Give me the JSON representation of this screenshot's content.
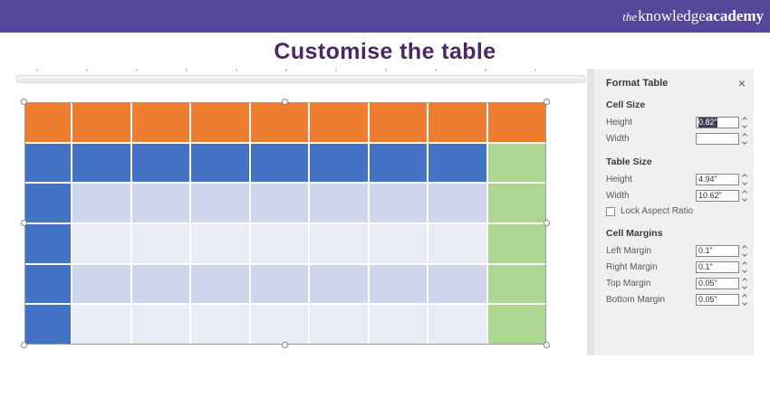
{
  "header": {
    "logo": {
      "the": "the",
      "knowledge": "knowledge",
      "academy": "academy"
    }
  },
  "title": "Customise the table",
  "panel": {
    "title": "Format Table",
    "close": "×",
    "sections": [
      {
        "heading": "Cell Size",
        "fields": [
          {
            "label": "Height",
            "value": "0.82\"",
            "selected": true
          },
          {
            "label": "Width",
            "value": "",
            "selected": false
          }
        ]
      },
      {
        "heading": "Table Size",
        "fields": [
          {
            "label": "Height",
            "value": "4.94\"",
            "selected": false
          },
          {
            "label": "Width",
            "value": "10.62\"",
            "selected": false
          }
        ],
        "checkbox": {
          "label": "Lock Aspect Ratio",
          "checked": false
        }
      },
      {
        "heading": "Cell Margins",
        "fields": [
          {
            "label": "Left Margin",
            "value": "0.1\"",
            "selected": false
          },
          {
            "label": "Right Margin",
            "value": "0.1\"",
            "selected": false
          },
          {
            "label": "Top Margin",
            "value": "0.05\"",
            "selected": false
          },
          {
            "label": "Bottom Margin",
            "value": "0.05\"",
            "selected": false
          }
        ]
      }
    ]
  },
  "slide_table": {
    "palette": {
      "O": "#ED7D31",
      "B": "#4472C4",
      "D": "#CFD5EA",
      "L": "#E9EBF5",
      "G": "#ADD693"
    },
    "cells": [
      [
        "O",
        "O",
        "O",
        "O",
        "O",
        "O",
        "O",
        "O",
        "O"
      ],
      [
        "B",
        "B",
        "B",
        "B",
        "B",
        "B",
        "B",
        "B",
        "G"
      ],
      [
        "B",
        "D",
        "D",
        "D",
        "D",
        "D",
        "D",
        "D",
        "G"
      ],
      [
        "B",
        "L",
        "L",
        "L",
        "L",
        "L",
        "L",
        "L",
        "G"
      ],
      [
        "B",
        "D",
        "D",
        "D",
        "D",
        "D",
        "D",
        "D",
        "G"
      ],
      [
        "B",
        "L",
        "L",
        "L",
        "L",
        "L",
        "L",
        "L",
        "G"
      ]
    ]
  },
  "colors": {
    "header_bg": "#57479B",
    "title_text": "#4A2860",
    "panel_bg": "#F1F0EF"
  }
}
